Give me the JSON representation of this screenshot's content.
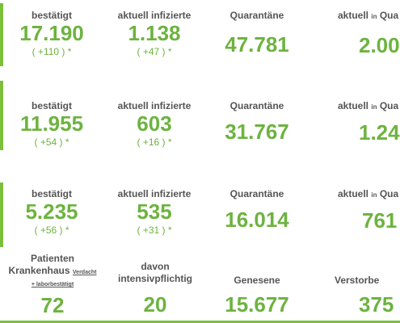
{
  "rows": [
    {
      "cells": [
        {
          "label": "bestätigt",
          "value": "17.190",
          "change": "( +110 ) *"
        },
        {
          "label": "aktuell infizierte",
          "value": "1.138",
          "change": "( +47 ) *"
        },
        {
          "label": "Quarantäne",
          "value": "47.781",
          "change": ""
        },
        {
          "label_main": "aktuell",
          "label_small": "in",
          "label_rest": "Qua",
          "value": "2.00",
          "change": ""
        }
      ]
    },
    {
      "cells": [
        {
          "label": "bestätigt",
          "value": "11.955",
          "change": "( +54 ) *"
        },
        {
          "label": "aktuell infizierte",
          "value": "603",
          "change": "( +16 ) *"
        },
        {
          "label": "Quarantäne",
          "value": "31.767",
          "change": ""
        },
        {
          "label_main": "aktuell",
          "label_small": "in",
          "label_rest": "Qua",
          "value": "1.24",
          "change": ""
        }
      ]
    },
    {
      "cells": [
        {
          "label": "bestätigt",
          "value": "5.235",
          "change": "( +56 ) *"
        },
        {
          "label": "aktuell infizierte",
          "value": "535",
          "change": "( +31 ) *"
        },
        {
          "label": "Quarantäne",
          "value": "16.014",
          "change": ""
        },
        {
          "label_main": "aktuell",
          "label_small": "in",
          "label_rest": "Qua",
          "value": "761",
          "change": ""
        }
      ]
    }
  ],
  "bottom": {
    "patienten": {
      "line1": "Patienten",
      "line2_main": "Krankenhaus",
      "line2_small": "Verdacht",
      "line3_small": "+ laborbestätigt",
      "value": "72"
    },
    "intensiv": {
      "line1": "davon",
      "line2": "intensivpflichtig",
      "value": "20"
    },
    "genesene": {
      "label": "Genesene",
      "value": "15.677"
    },
    "verstorbene": {
      "label": "Verstorbe",
      "value": "375"
    }
  },
  "colors": {
    "accent": "#6db33f",
    "bar": "#7cbf3a",
    "label": "#555555"
  }
}
